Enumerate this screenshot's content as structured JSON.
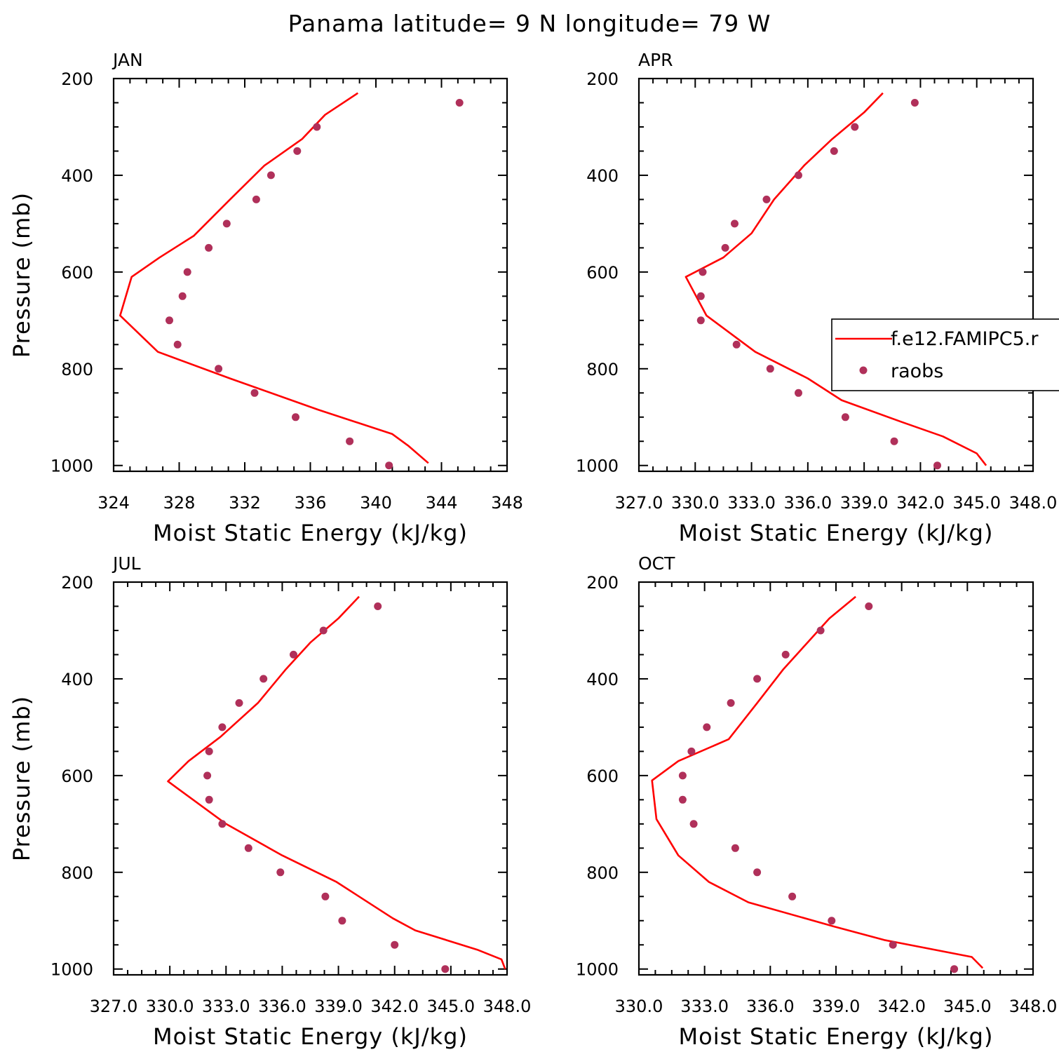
{
  "figure": {
    "title": "Panama  latitude= 9 N longitude= 79 W",
    "colors": {
      "model": "#ff0000",
      "obs": "#b0305a"
    }
  },
  "legend": {
    "entries": [
      {
        "label": "f.e12.FAMIPC5.r",
        "style": "line"
      },
      {
        "label": "raobs",
        "style": "marker"
      }
    ],
    "placement": "right-middle of APR panel, clipped at figure edge"
  },
  "chart_data": [
    {
      "type": "line",
      "label": "JAN",
      "xlabel": "Moist Static Energy (kJ/kg)",
      "ylabel": "Pressure (mb)",
      "xlim": [
        324,
        348
      ],
      "ylim": [
        1012,
        200
      ],
      "xticks": [
        324,
        328,
        332,
        336,
        340,
        344,
        348
      ],
      "xtick_labels": [
        "324",
        "328",
        "332",
        "336",
        "340",
        "344",
        "348"
      ],
      "yticks": [
        200,
        400,
        600,
        800,
        1000
      ],
      "ytick_labels": [
        "200",
        "400",
        "600",
        "800",
        "1000"
      ],
      "series": [
        {
          "name": "f.e12.FAMIPC5.r",
          "style": "line",
          "points": [
            [
              338.9,
              230
            ],
            [
              336.9,
              275
            ],
            [
              335.5,
              325
            ],
            [
              333.2,
              380
            ],
            [
              331.1,
              450
            ],
            [
              328.9,
              525
            ],
            [
              326.8,
              570
            ],
            [
              325.1,
              610
            ],
            [
              324.4,
              690
            ],
            [
              326.7,
              765
            ],
            [
              331.1,
              820
            ],
            [
              336.5,
              885
            ],
            [
              341.0,
              935
            ],
            [
              342.0,
              960
            ],
            [
              343.2,
              995
            ]
          ]
        },
        {
          "name": "raobs",
          "style": "marker",
          "points": [
            [
              345.1,
              250
            ],
            [
              336.4,
              300
            ],
            [
              335.2,
              350
            ],
            [
              333.6,
              400
            ],
            [
              332.7,
              450
            ],
            [
              330.9,
              500
            ],
            [
              329.8,
              550
            ],
            [
              328.5,
              600
            ],
            [
              328.2,
              650
            ],
            [
              327.4,
              700
            ],
            [
              327.9,
              750
            ],
            [
              330.4,
              800
            ],
            [
              332.6,
              850
            ],
            [
              335.1,
              900
            ],
            [
              338.4,
              950
            ],
            [
              340.8,
              1000
            ]
          ]
        }
      ]
    },
    {
      "type": "line",
      "label": "APR",
      "xlabel": "Moist Static Energy (kJ/kg)",
      "ylabel": "",
      "xlim": [
        327,
        348
      ],
      "ylim": [
        1012,
        200
      ],
      "xticks": [
        327,
        330,
        333,
        336,
        339,
        342,
        345,
        348
      ],
      "xtick_labels": [
        "327.0",
        "330.0",
        "333.0",
        "336.0",
        "339.0",
        "342.0",
        "345.0",
        "348.0"
      ],
      "yticks": [
        200,
        400,
        600,
        800,
        1000
      ],
      "ytick_labels": [
        "200",
        "400",
        "600",
        "800",
        "1000"
      ],
      "series": [
        {
          "name": "f.e12.FAMIPC5.r",
          "style": "line",
          "points": [
            [
              340.0,
              230
            ],
            [
              339.0,
              270
            ],
            [
              337.3,
              325
            ],
            [
              335.8,
              380
            ],
            [
              334.2,
              450
            ],
            [
              333.0,
              520
            ],
            [
              331.5,
              570
            ],
            [
              329.5,
              610
            ],
            [
              330.6,
              690
            ],
            [
              333.2,
              765
            ],
            [
              336.0,
              820
            ],
            [
              337.8,
              865
            ],
            [
              341.0,
              910
            ],
            [
              343.2,
              940
            ],
            [
              345.0,
              975
            ],
            [
              345.5,
              1000
            ]
          ]
        },
        {
          "name": "raobs",
          "style": "marker",
          "points": [
            [
              341.7,
              250
            ],
            [
              338.5,
              300
            ],
            [
              337.4,
              350
            ],
            [
              335.5,
              400
            ],
            [
              333.8,
              450
            ],
            [
              332.1,
              500
            ],
            [
              331.6,
              550
            ],
            [
              330.4,
              600
            ],
            [
              330.3,
              650
            ],
            [
              330.3,
              700
            ],
            [
              332.2,
              750
            ],
            [
              334.0,
              800
            ],
            [
              335.5,
              850
            ],
            [
              338.0,
              900
            ],
            [
              340.6,
              950
            ],
            [
              342.9,
              1000
            ]
          ]
        }
      ]
    },
    {
      "type": "line",
      "label": "JUL",
      "xlabel": "Moist Static Energy (kJ/kg)",
      "ylabel": "Pressure (mb)",
      "xlim": [
        327,
        348
      ],
      "ylim": [
        1012,
        200
      ],
      "xticks": [
        327,
        330,
        333,
        336,
        339,
        342,
        345,
        348
      ],
      "xtick_labels": [
        "327.0",
        "330.0",
        "333.0",
        "336.0",
        "339.0",
        "342.0",
        "345.0",
        "348.0"
      ],
      "yticks": [
        200,
        400,
        600,
        800,
        1000
      ],
      "ytick_labels": [
        "200",
        "400",
        "600",
        "800",
        "1000"
      ],
      "series": [
        {
          "name": "f.e12.FAMIPC5.r",
          "style": "line",
          "points": [
            [
              340.1,
              230
            ],
            [
              339.0,
              275
            ],
            [
              337.5,
              325
            ],
            [
              336.2,
              380
            ],
            [
              334.7,
              450
            ],
            [
              332.7,
              520
            ],
            [
              331.0,
              570
            ],
            [
              329.9,
              612
            ],
            [
              333.0,
              700
            ],
            [
              336.0,
              765
            ],
            [
              338.9,
              820
            ],
            [
              341.9,
              895
            ],
            [
              343.1,
              920
            ],
            [
              346.4,
              960
            ],
            [
              347.7,
              980
            ],
            [
              347.9,
              1000
            ]
          ]
        },
        {
          "name": "raobs",
          "style": "marker",
          "points": [
            [
              341.1,
              250
            ],
            [
              338.2,
              300
            ],
            [
              336.6,
              350
            ],
            [
              335.0,
              400
            ],
            [
              333.7,
              450
            ],
            [
              332.8,
              500
            ],
            [
              332.1,
              550
            ],
            [
              332.0,
              600
            ],
            [
              332.1,
              650
            ],
            [
              332.8,
              700
            ],
            [
              334.2,
              750
            ],
            [
              335.9,
              800
            ],
            [
              338.3,
              850
            ],
            [
              339.2,
              900
            ],
            [
              342.0,
              950
            ],
            [
              344.7,
              1000
            ]
          ]
        }
      ]
    },
    {
      "type": "line",
      "label": "OCT",
      "xlabel": "Moist Static Energy (kJ/kg)",
      "ylabel": "",
      "xlim": [
        330,
        348
      ],
      "ylim": [
        1012,
        200
      ],
      "xticks": [
        330,
        333,
        336,
        339,
        342,
        345,
        348
      ],
      "xtick_labels": [
        "330.0",
        "333.0",
        "336.0",
        "339.0",
        "342.0",
        "345.0",
        "348.0"
      ],
      "yticks": [
        200,
        400,
        600,
        800,
        1000
      ],
      "ytick_labels": [
        "200",
        "400",
        "600",
        "800",
        "1000"
      ],
      "series": [
        {
          "name": "f.e12.FAMIPC5.r",
          "style": "line",
          "points": [
            [
              339.9,
              230
            ],
            [
              338.7,
              275
            ],
            [
              337.7,
              325
            ],
            [
              336.6,
              380
            ],
            [
              335.4,
              450
            ],
            [
              334.1,
              525
            ],
            [
              331.8,
              570
            ],
            [
              330.6,
              610
            ],
            [
              330.8,
              690
            ],
            [
              331.8,
              765
            ],
            [
              333.2,
              820
            ],
            [
              335.0,
              862
            ],
            [
              338.9,
              912
            ],
            [
              341.2,
              940
            ],
            [
              345.2,
              975
            ],
            [
              345.7,
              998
            ]
          ]
        },
        {
          "name": "raobs",
          "style": "marker",
          "points": [
            [
              340.5,
              250
            ],
            [
              338.3,
              300
            ],
            [
              336.7,
              350
            ],
            [
              335.4,
              400
            ],
            [
              334.2,
              450
            ],
            [
              333.1,
              500
            ],
            [
              332.4,
              550
            ],
            [
              332.0,
              600
            ],
            [
              332.0,
              650
            ],
            [
              332.5,
              700
            ],
            [
              334.4,
              750
            ],
            [
              335.4,
              800
            ],
            [
              337.0,
              850
            ],
            [
              338.8,
              900
            ],
            [
              341.6,
              950
            ],
            [
              344.4,
              1000
            ]
          ]
        }
      ]
    }
  ]
}
